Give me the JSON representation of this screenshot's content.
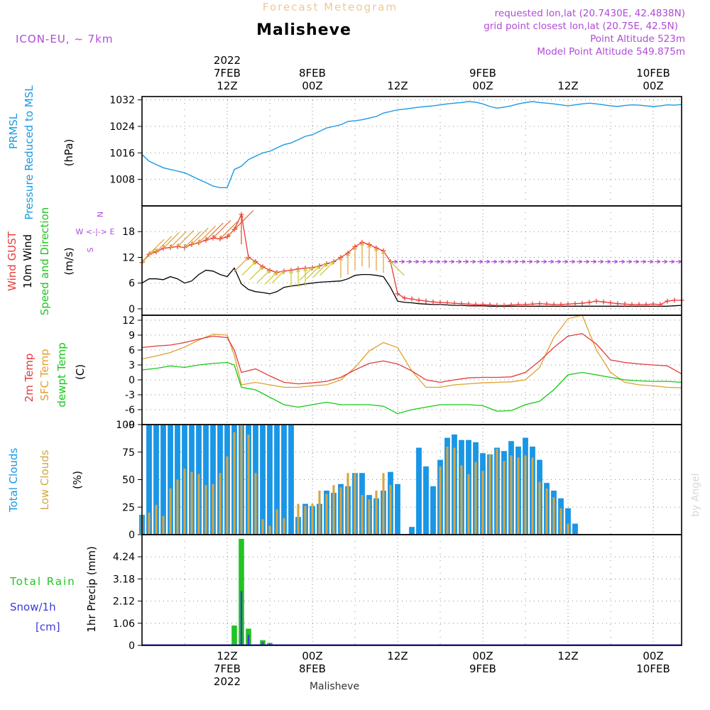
{
  "header": {
    "forecast_title": "Forecast Meteogram",
    "location": "Malisheve",
    "model": "ICON-EU, ~ 7km",
    "requested": "requested lon,lat (20.7430E, 42.4838N)",
    "grid_point": "grid point closest lon,lat (20.75E, 42.5N)",
    "point_altitude": "Point Altitude 523m",
    "model_altitude": "Model Point Altitude 549.875m"
  },
  "footer": {
    "location": "Malisheve",
    "credit": "by Angel"
  },
  "time_axis": {
    "hours_start": 0,
    "hours_end": 76,
    "top_ticks": [
      {
        "hour": 12,
        "lines": [
          "2022",
          "7FEB",
          "12Z"
        ]
      },
      {
        "hour": 24,
        "lines": [
          "8FEB",
          "00Z"
        ]
      },
      {
        "hour": 36,
        "lines": [
          "12Z"
        ]
      },
      {
        "hour": 48,
        "lines": [
          "9FEB",
          "00Z"
        ]
      },
      {
        "hour": 60,
        "lines": [
          "12Z"
        ]
      },
      {
        "hour": 72,
        "lines": [
          "10FEB",
          "00Z"
        ]
      }
    ],
    "bottom_ticks": [
      {
        "hour": 12,
        "lines": [
          "12Z",
          "7FEB",
          "2022"
        ]
      },
      {
        "hour": 24,
        "lines": [
          "00Z",
          "8FEB"
        ]
      },
      {
        "hour": 36,
        "lines": [
          "12Z"
        ]
      },
      {
        "hour": 48,
        "lines": [
          "00Z",
          "9FEB"
        ]
      },
      {
        "hour": 60,
        "lines": [
          "12Z"
        ]
      },
      {
        "hour": 72,
        "lines": [
          "00Z",
          "10FEB"
        ]
      }
    ]
  },
  "colors": {
    "pressure": "#1a9ae0",
    "gust": "#e83a3a",
    "wind": "#000000",
    "direction": "#22c322",
    "temp2m": "#e03c3c",
    "sfc": "#e0a030",
    "dewpt": "#15c915",
    "total_cloud": "#1996e6",
    "low_cloud": "#d4a643",
    "rain": "#22c322",
    "snow": "#3a3ad8",
    "purple": "#b04ad8",
    "title_faint": "#f0c890"
  },
  "chart_data": [
    {
      "id": "pressure",
      "type": "line",
      "labels": [
        "PRMSL",
        "Pressure Reduced to MSL"
      ],
      "unit": "(hPa)",
      "ylim": [
        1000,
        1033
      ],
      "yticks": [
        "1008",
        "1016",
        "1024",
        "1032"
      ],
      "x": [
        0,
        1,
        2,
        3,
        4,
        5,
        6,
        7,
        8,
        9,
        10,
        11,
        12,
        13,
        14,
        15,
        16,
        17,
        18,
        19,
        20,
        21,
        22,
        23,
        24,
        25,
        26,
        27,
        28,
        29,
        30,
        31,
        32,
        33,
        34,
        35,
        36,
        37,
        38,
        39,
        40,
        41,
        42,
        43,
        44,
        45,
        46,
        47,
        48,
        49,
        50,
        51,
        52,
        53,
        54,
        55,
        56,
        57,
        58,
        59,
        60,
        61,
        62,
        63,
        64,
        65,
        66,
        67,
        68,
        69,
        70,
        71,
        72,
        73,
        74,
        75,
        76
      ],
      "y": [
        1015.5,
        1013.5,
        1012.5,
        1011.5,
        1011,
        1010.5,
        1010,
        1009,
        1008,
        1007,
        1006,
        1005.5,
        1005.5,
        1011,
        1012,
        1014,
        1015,
        1016,
        1016.5,
        1017.5,
        1018.5,
        1019,
        1020,
        1021,
        1021.5,
        1022.5,
        1023.5,
        1024,
        1024.5,
        1025.5,
        1025.7,
        1026,
        1026.5,
        1027,
        1028,
        1028.5,
        1029,
        1029.2,
        1029.5,
        1029.8,
        1030,
        1030.2,
        1030.5,
        1030.8,
        1031,
        1031.2,
        1031.5,
        1031.3,
        1030.8,
        1030,
        1029.5,
        1029.8,
        1030.2,
        1030.8,
        1031.2,
        1031.5,
        1031.2,
        1031,
        1030.8,
        1030.5,
        1030.2,
        1030.5,
        1030.8,
        1031,
        1030.8,
        1030.5,
        1030.2,
        1030,
        1030.3,
        1030.5,
        1030.4,
        1030.2,
        1030,
        1030.2,
        1030.5,
        1030.4,
        1030.6
      ]
    },
    {
      "id": "wind",
      "type": "line",
      "labels": [
        "Wind GUST",
        "10m Wind",
        "Speed and Direction"
      ],
      "unit": "(m/s)",
      "ylim": [
        -1.5,
        24
      ],
      "yticks": [
        "0",
        "6",
        "12",
        "18"
      ],
      "compass": [
        "N",
        "W <-|-> E",
        "S"
      ],
      "x": [
        0,
        1,
        2,
        3,
        4,
        5,
        6,
        7,
        8,
        9,
        10,
        11,
        12,
        13,
        14,
        15,
        16,
        17,
        18,
        19,
        20,
        21,
        22,
        23,
        24,
        25,
        26,
        27,
        28,
        29,
        30,
        31,
        32,
        33,
        34,
        35,
        36,
        37,
        38,
        39,
        40,
        41,
        42,
        43,
        44,
        45,
        46,
        47,
        48,
        49,
        50,
        51,
        52,
        53,
        54,
        55,
        56,
        57,
        58,
        59,
        60,
        61,
        62,
        63,
        64,
        65,
        66,
        67,
        68,
        69,
        70,
        71,
        72,
        73,
        74,
        75,
        76
      ],
      "gust": [
        10.8,
        12.7,
        13.3,
        14.1,
        14.3,
        14.5,
        14.3,
        15,
        15.4,
        16,
        16.5,
        16.3,
        16.8,
        18.5,
        22,
        12,
        11,
        9.8,
        9,
        8.5,
        8.8,
        9,
        9.3,
        9.5,
        9.6,
        10,
        10.5,
        11,
        12,
        13,
        14.5,
        15.5,
        15,
        14.2,
        13.5,
        11,
        3.5,
        2.5,
        2.3,
        2,
        1.8,
        1.6,
        1.5,
        1.4,
        1.3,
        1.2,
        1.1,
        1,
        1,
        0.9,
        0.8,
        0.8,
        0.9,
        1,
        1,
        1.1,
        1.2,
        1.1,
        1,
        1,
        1.1,
        1.2,
        1.3,
        1.5,
        1.8,
        1.6,
        1.4,
        1.2,
        1.1,
        1,
        1,
        1,
        1.1,
        1,
        1.8,
        2,
        2
      ],
      "wind": [
        6,
        7,
        7,
        6.8,
        7.5,
        7,
        6,
        6.5,
        8,
        9,
        8.8,
        8,
        7.5,
        9.5,
        5.8,
        4.5,
        4,
        3.8,
        3.5,
        4,
        5,
        5.3,
        5.5,
        5.8,
        6,
        6.2,
        6.3,
        6.4,
        6.5,
        7,
        7.8,
        8,
        8,
        7.8,
        7.5,
        5,
        1.8,
        1.5,
        1.4,
        1.2,
        1.1,
        1,
        1,
        0.9,
        0.8,
        0.8,
        0.7,
        0.7,
        0.7,
        0.6,
        0.6,
        0.6,
        0.6,
        0.6,
        0.6,
        0.6,
        0.6,
        0.6,
        0.6,
        0.6,
        0.6,
        0.6,
        0.6,
        0.6,
        0.6,
        0.6,
        0.6,
        0.6,
        0.6,
        0.6,
        0.6,
        0.6,
        0.6,
        0.6,
        0.6,
        0.7,
        0.8
      ],
      "directions": [
        "SW",
        "SW",
        "SW",
        "SW",
        "SW",
        "SW",
        "SW",
        "SW",
        "SW",
        "SW",
        "SW",
        "SW",
        "SW",
        "SW",
        "N",
        "NE",
        "NE",
        "NE",
        "NE",
        "NE",
        "NE",
        "N",
        "N",
        "N",
        "NE",
        "NE",
        "NE",
        "NE",
        "N",
        "N",
        "N",
        "N",
        "N",
        "N",
        "N",
        "NW",
        "E",
        "E",
        "E",
        "E",
        "E",
        "E",
        "E",
        "E",
        "E",
        "E",
        "E",
        "E",
        "E",
        "E",
        "E",
        "E",
        "E",
        "E",
        "E",
        "E",
        "E",
        "E",
        "E",
        "E",
        "E",
        "E",
        "E",
        "E",
        "E",
        "E",
        "E",
        "E",
        "E",
        "E",
        "E",
        "E",
        "E",
        "E",
        "E",
        "E",
        "E"
      ]
    },
    {
      "id": "temperature",
      "type": "line",
      "labels": [
        "2m Temp",
        "SFC Temp",
        "dewpt Temp"
      ],
      "unit": "(C)",
      "ylim": [
        -9,
        13
      ],
      "yticks": [
        "-9",
        "-6",
        "-3",
        "0",
        "3",
        "6",
        "9",
        "12"
      ],
      "x": [
        0,
        2,
        4,
        6,
        8,
        10,
        12,
        13,
        14,
        16,
        18,
        20,
        22,
        24,
        26,
        28,
        30,
        32,
        34,
        36,
        38,
        40,
        42,
        44,
        46,
        48,
        50,
        52,
        54,
        56,
        58,
        60,
        62,
        64,
        66,
        68,
        70,
        72,
        74,
        76
      ],
      "temp2m": [
        6.5,
        6.8,
        7,
        7.5,
        8.2,
        8.8,
        8.5,
        6,
        1.5,
        2.2,
        0.8,
        -0.5,
        -0.8,
        -0.6,
        -0.3,
        0.5,
        2,
        3.3,
        3.8,
        3.2,
        1.8,
        0,
        -0.5,
        0,
        0.4,
        0.5,
        0.5,
        0.6,
        1.5,
        3.8,
        6.5,
        8.8,
        9.3,
        7.2,
        4,
        3.5,
        3.2,
        3,
        2.8,
        1.2
      ],
      "sfc": [
        4.2,
        4.8,
        5.5,
        6.6,
        8,
        9.2,
        9,
        5,
        -1,
        -0.5,
        -1,
        -1.5,
        -1.5,
        -1.2,
        -1,
        0,
        2.5,
        5.8,
        7.5,
        6.5,
        1.8,
        -1.5,
        -1.5,
        -1,
        -0.8,
        -0.6,
        -0.5,
        -0.4,
        0,
        2.5,
        8.5,
        12.3,
        13,
        6,
        1.5,
        -0.5,
        -1,
        -1.2,
        -1.5,
        -1.6
      ],
      "dewpt": [
        2,
        2.3,
        2.8,
        2.5,
        3,
        3.3,
        3.5,
        3,
        -1.5,
        -2,
        -3.5,
        -5,
        -5.5,
        -5,
        -4.5,
        -5,
        -5,
        -5,
        -5.3,
        -6.8,
        -6,
        -5.5,
        -5,
        -5,
        -5,
        -5.2,
        -6.3,
        -6.2,
        -5,
        -4.3,
        -2,
        1,
        1.5,
        1,
        0.5,
        0,
        -0.2,
        -0.3,
        -0.3,
        -0.5
      ]
    },
    {
      "id": "clouds",
      "type": "bar",
      "labels": [
        "Total Clouds",
        "Low Clouds"
      ],
      "unit": "(%)",
      "ylim": [
        0,
        100
      ],
      "yticks": [
        "0",
        "25",
        "50",
        "75",
        "100"
      ],
      "x": [
        0,
        1,
        2,
        3,
        4,
        5,
        6,
        7,
        8,
        9,
        10,
        11,
        12,
        13,
        14,
        15,
        16,
        17,
        18,
        19,
        20,
        21,
        22,
        23,
        24,
        25,
        26,
        27,
        28,
        29,
        30,
        31,
        32,
        33,
        34,
        35,
        36,
        37,
        38,
        39,
        40,
        41,
        42,
        43,
        44,
        45,
        46,
        47,
        48,
        49,
        50,
        51,
        52,
        53,
        54,
        55,
        56,
        57,
        58,
        59,
        60,
        61,
        62,
        63,
        64,
        65,
        66,
        67,
        68,
        69,
        70,
        71,
        72,
        73,
        74,
        75,
        76
      ],
      "total": [
        18,
        100,
        100,
        100,
        100,
        100,
        100,
        100,
        100,
        100,
        100,
        100,
        100,
        100,
        100,
        100,
        100,
        100,
        100,
        100,
        100,
        100,
        16,
        28,
        26,
        28,
        40,
        38,
        46,
        44,
        56,
        56,
        36,
        33,
        40,
        57,
        46,
        0,
        7,
        79,
        62,
        44,
        68,
        88,
        91,
        86,
        86,
        84,
        74,
        73,
        79,
        76,
        85,
        80,
        88,
        80,
        68,
        47,
        40,
        33,
        24,
        10,
        0,
        0,
        0,
        0,
        0,
        0,
        0,
        0,
        0,
        0,
        0,
        0,
        0,
        0,
        0
      ],
      "low": [
        18,
        20,
        27,
        17,
        42,
        50,
        60,
        57,
        55,
        45,
        46,
        56,
        71,
        93,
        100,
        91,
        56,
        14,
        8,
        23,
        15,
        0,
        28,
        26,
        28,
        40,
        37,
        45,
        43,
        56,
        56,
        36,
        32,
        40,
        56,
        45,
        0,
        0,
        0,
        0,
        0,
        0,
        62,
        80,
        79,
        63,
        55,
        66,
        58,
        73,
        78,
        67,
        72,
        70,
        72,
        70,
        48,
        42,
        34,
        24,
        10,
        0,
        0,
        0,
        0,
        0,
        0,
        0,
        0,
        0,
        0,
        0,
        0,
        0,
        0,
        0,
        0
      ]
    },
    {
      "id": "precip",
      "type": "bar",
      "labels": [
        "Total Rain",
        "Snow/1h",
        "[cm]"
      ],
      "unit": "1hr Precip (mm)",
      "ylim": [
        0,
        5.3
      ],
      "yticks": [
        "0",
        "1.06",
        "2.12",
        "3.18",
        "4.24"
      ],
      "x": [
        13,
        14,
        15,
        17,
        18
      ],
      "rain": [
        0.95,
        5.1,
        0.8,
        0.25,
        0.12
      ],
      "snow": [
        0,
        2.6,
        0.5,
        0.15,
        0.08
      ]
    }
  ]
}
